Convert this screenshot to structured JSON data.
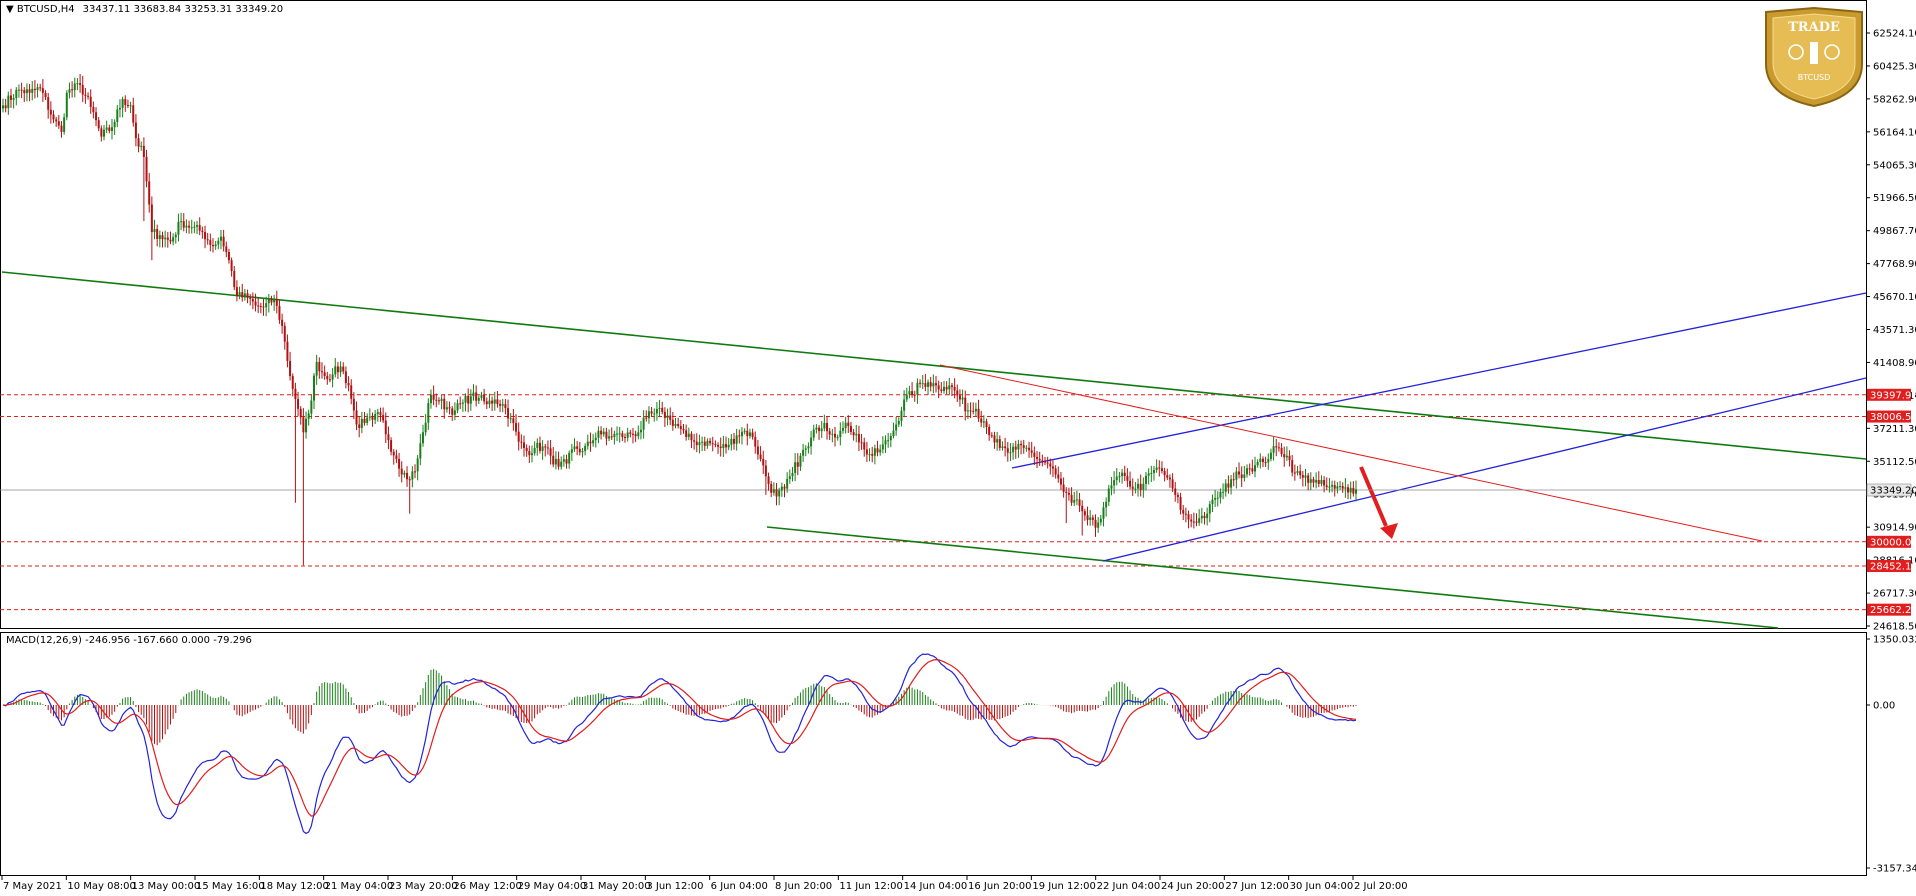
{
  "header": {
    "symbol": "BTCUSD,H4",
    "ohlc": "33437.11 33683.84 33253.31 33349.20",
    "indicator": "MACD(12,26,9) -246.956 -167.660 0.000 -79.296"
  },
  "logo": {
    "text_top": "TRADE",
    "text_bottom": "BTCUSD"
  },
  "colors": {
    "bull": "#1a7f1a",
    "bear": "#b11111",
    "trend": "#0f7a0f",
    "channel": "#2323d8",
    "resistance": "#e21d1d",
    "level": "#e21d1d",
    "macd_line": "#2323d8",
    "signal_line": "#e21d1d"
  },
  "chart_data": [
    {
      "type": "candlestick",
      "ylim": [
        24618.5,
        62524.1
      ],
      "y_ticks": [
        "62524.10",
        "60425.30",
        "58262.90",
        "56164.10",
        "54065.30",
        "51966.50",
        "49867.70",
        "47768.90",
        "45670.10",
        "43571.30",
        "41408.90",
        "39310.10",
        "37211.30",
        "35112.50",
        "33013.70",
        "30914.90",
        "28816.10",
        "26717.30",
        "24618.50"
      ],
      "x_ticks": [
        "7 May 2021",
        "10 May 08:00",
        "13 May 00:00",
        "15 May 16:00",
        "18 May 12:00",
        "21 May 04:00",
        "23 May 20:00",
        "26 May 12:00",
        "29 May 04:00",
        "31 May 20:00",
        "3 Jun 12:00",
        "6 Jun 04:00",
        "8 Jun 20:00",
        "11 Jun 12:00",
        "14 Jun 04:00",
        "16 Jun 20:00",
        "19 Jun 12:00",
        "22 Jun 04:00",
        "24 Jun 20:00",
        "27 Jun 12:00",
        "30 Jun 04:00",
        "2 Jul 20:00"
      ],
      "levels": [
        "39397.96",
        "38006.59",
        "30000.00",
        "28452.19",
        "25662.24"
      ],
      "current_price": "33349.20",
      "anchors": [
        [
          0,
          57900
        ],
        [
          6,
          58900
        ],
        [
          10,
          58700
        ],
        [
          14,
          59000
        ],
        [
          19,
          57000
        ],
        [
          22,
          56200
        ],
        [
          24,
          58700
        ],
        [
          29,
          59200
        ],
        [
          33,
          57800
        ],
        [
          37,
          55900
        ],
        [
          41,
          56500
        ],
        [
          45,
          58300
        ],
        [
          48,
          57900
        ],
        [
          50,
          55800
        ],
        [
          53,
          54600
        ],
        [
          56,
          49800
        ],
        [
          59,
          49600
        ],
        [
          63,
          49200
        ],
        [
          67,
          50500
        ],
        [
          71,
          50100
        ],
        [
          75,
          49800
        ],
        [
          79,
          48900
        ],
        [
          82,
          49500
        ],
        [
          85,
          48000
        ],
        [
          88,
          45700
        ],
        [
          92,
          45600
        ],
        [
          95,
          45100
        ],
        [
          98,
          45000
        ],
        [
          102,
          45500
        ],
        [
          105,
          43800
        ],
        [
          108,
          40600
        ],
        [
          111,
          38500
        ],
        [
          113,
          37000
        ],
        [
          115,
          38200
        ],
        [
          118,
          41500
        ],
        [
          121,
          40600
        ],
        [
          124,
          40700
        ],
        [
          127,
          41200
        ],
        [
          130,
          40000
        ],
        [
          133,
          37500
        ],
        [
          136,
          37600
        ],
        [
          139,
          37800
        ],
        [
          142,
          38100
        ],
        [
          145,
          36500
        ],
        [
          148,
          35300
        ],
        [
          152,
          34000
        ],
        [
          155,
          34500
        ],
        [
          158,
          37000
        ],
        [
          161,
          39400
        ],
        [
          164,
          39000
        ],
        [
          167,
          38600
        ],
        [
          170,
          38400
        ],
        [
          173,
          38900
        ],
        [
          176,
          39300
        ],
        [
          179,
          39200
        ],
        [
          182,
          38800
        ],
        [
          185,
          39100
        ],
        [
          188,
          38800
        ],
        [
          191,
          37900
        ],
        [
          194,
          36400
        ],
        [
          197,
          35800
        ],
        [
          200,
          36000
        ],
        [
          203,
          36100
        ],
        [
          206,
          35500
        ],
        [
          209,
          34800
        ],
        [
          212,
          35000
        ],
        [
          215,
          36100
        ],
        [
          218,
          35800
        ],
        [
          221,
          36300
        ],
        [
          224,
          37100
        ],
        [
          227,
          36600
        ],
        [
          230,
          36900
        ],
        [
          233,
          36700
        ],
        [
          236,
          36900
        ],
        [
          239,
          37000
        ],
        [
          242,
          37900
        ],
        [
          245,
          38200
        ],
        [
          248,
          38300
        ],
        [
          251,
          37800
        ],
        [
          254,
          37400
        ],
        [
          257,
          36700
        ],
        [
          260,
          36400
        ],
        [
          263,
          36400
        ],
        [
          266,
          36300
        ],
        [
          270,
          36000
        ],
        [
          273,
          36200
        ],
        [
          276,
          36800
        ],
        [
          279,
          37100
        ],
        [
          282,
          36700
        ],
        [
          285,
          35300
        ],
        [
          288,
          33700
        ],
        [
          291,
          32900
        ],
        [
          294,
          33400
        ],
        [
          297,
          34400
        ],
        [
          300,
          35500
        ],
        [
          303,
          36100
        ],
        [
          306,
          37300
        ],
        [
          309,
          37600
        ],
        [
          312,
          36900
        ],
        [
          315,
          37100
        ],
        [
          318,
          37400
        ],
        [
          321,
          36900
        ],
        [
          324,
          35900
        ],
        [
          327,
          35500
        ],
        [
          330,
          35900
        ],
        [
          333,
          36500
        ],
        [
          336,
          37500
        ],
        [
          339,
          39100
        ],
        [
          342,
          39400
        ],
        [
          345,
          40100
        ],
        [
          348,
          40200
        ],
        [
          351,
          40000
        ],
        [
          354,
          39900
        ],
        [
          357,
          39900
        ],
        [
          360,
          39100
        ],
        [
          363,
          38400
        ],
        [
          366,
          38500
        ],
        [
          369,
          37700
        ],
        [
          372,
          36800
        ],
        [
          375,
          36000
        ],
        [
          378,
          35700
        ],
        [
          381,
          35900
        ],
        [
          384,
          36000
        ],
        [
          387,
          35700
        ],
        [
          390,
          35200
        ],
        [
          393,
          35000
        ],
        [
          396,
          34300
        ],
        [
          399,
          33200
        ],
        [
          402,
          32500
        ],
        [
          405,
          32300
        ],
        [
          408,
          31400
        ],
        [
          411,
          30900
        ],
        [
          414,
          32200
        ],
        [
          417,
          33600
        ],
        [
          420,
          34200
        ],
        [
          423,
          33900
        ],
        [
          426,
          33400
        ],
        [
          429,
          33700
        ],
        [
          432,
          34400
        ],
        [
          435,
          34700
        ],
        [
          438,
          34100
        ],
        [
          441,
          33000
        ],
        [
          444,
          31800
        ],
        [
          447,
          31300
        ],
        [
          450,
          31500
        ],
        [
          453,
          31800
        ],
        [
          456,
          32800
        ],
        [
          459,
          33200
        ],
        [
          462,
          34000
        ],
        [
          465,
          34300
        ],
        [
          468,
          34700
        ],
        [
          471,
          34900
        ],
        [
          474,
          35100
        ],
        [
          477,
          35700
        ],
        [
          480,
          36000
        ],
        [
          483,
          35500
        ],
        [
          486,
          34400
        ],
        [
          489,
          34100
        ],
        [
          492,
          34000
        ],
        [
          495,
          33700
        ],
        [
          498,
          33500
        ],
        [
          501,
          33400
        ],
        [
          504,
          33400
        ],
        [
          507,
          33450
        ],
        [
          509,
          33349
        ]
      ]
    },
    {
      "type": "bar+line",
      "name": "MACD(12,26,9)",
      "ylim": [
        -3157.344,
        1350.032
      ],
      "y_ticks": [
        "1350.032",
        "0.00",
        "-3157.344"
      ]
    }
  ]
}
